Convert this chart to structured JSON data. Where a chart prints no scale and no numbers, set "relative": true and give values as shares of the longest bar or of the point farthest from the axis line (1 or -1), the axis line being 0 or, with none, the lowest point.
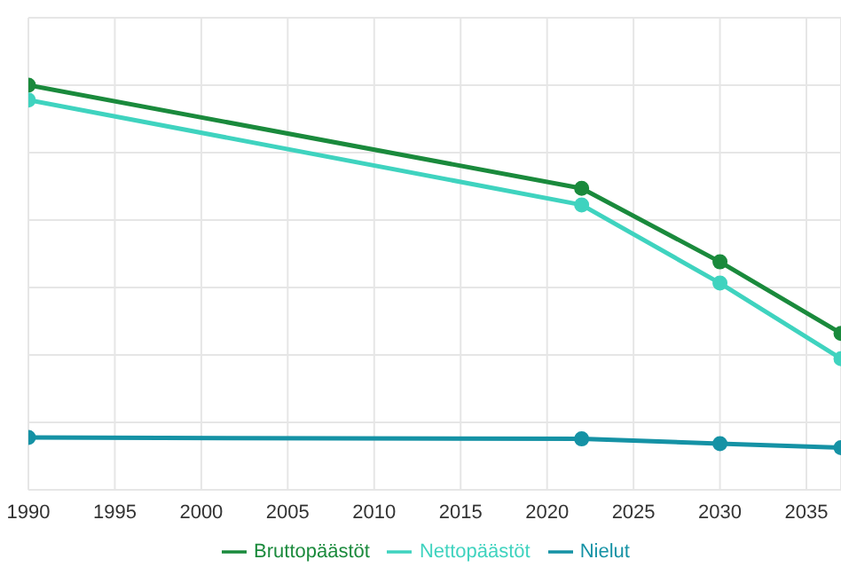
{
  "chart_data": {
    "type": "line",
    "relative": true,
    "x": [
      1990,
      2022,
      2030,
      2037
    ],
    "xlim": [
      1990,
      2037
    ],
    "xticks": [
      1990,
      1995,
      2000,
      2005,
      2010,
      2015,
      2020,
      2025,
      2030,
      2035
    ],
    "series": [
      {
        "name": "Bruttopäästöt",
        "color": "#1a8a3c",
        "values": [
          1,
          0.694,
          0.476,
          0.264
        ]
      },
      {
        "name": "Nettopäästöt",
        "color": "#3fd3bf",
        "values": [
          0.956,
          0.645,
          0.413,
          0.189
        ]
      },
      {
        "name": "Nielut",
        "color": "#1592a5",
        "values": [
          -0.045,
          -0.049,
          -0.063,
          -0.075
        ]
      }
    ],
    "grid": true,
    "legend": "bottom",
    "marker": "circle",
    "line_style": "solid"
  }
}
